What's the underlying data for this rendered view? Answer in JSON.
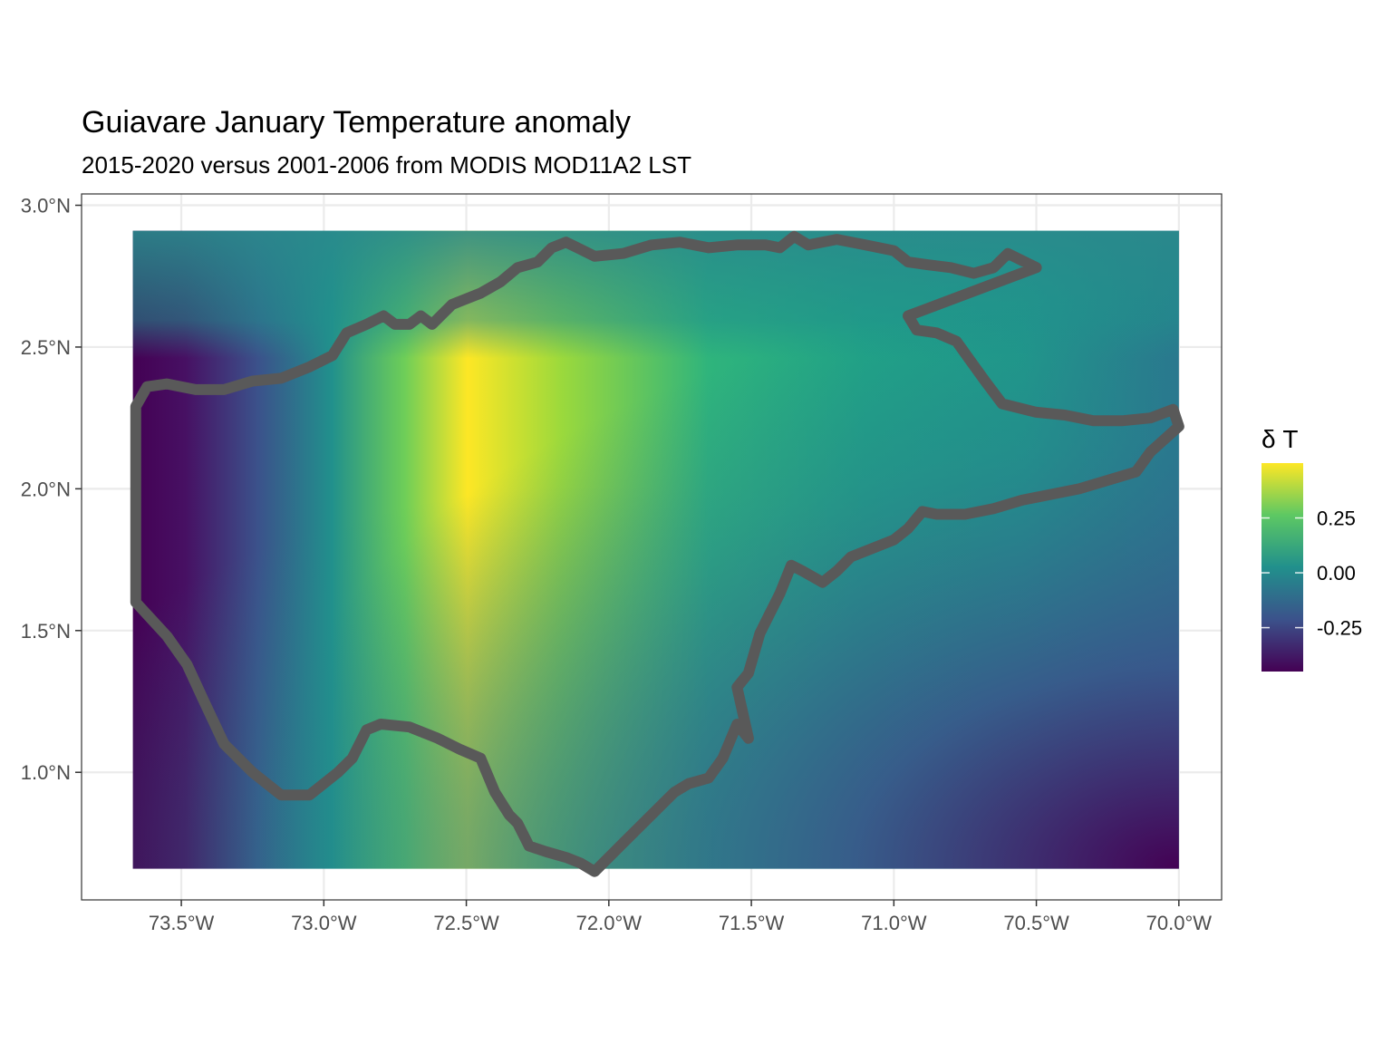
{
  "chart_data": {
    "type": "heatmap",
    "title": "Guiavare January Temperature anomaly",
    "subtitle": "2015-2020 versus 2001-2006 from MODIS MOD11A2 LST",
    "xlabel": "",
    "ylabel": "",
    "xlim": [
      -73.85,
      -69.85
    ],
    "ylim": [
      0.55,
      3.04
    ],
    "raster_extent": {
      "lon": [
        -73.67,
        -70.0
      ],
      "lat": [
        0.66,
        2.91
      ]
    },
    "x_ticks": [
      {
        "value": -73.5,
        "label": "73.5°W"
      },
      {
        "value": -73.0,
        "label": "73.0°W"
      },
      {
        "value": -72.5,
        "label": "72.5°W"
      },
      {
        "value": -72.0,
        "label": "72.0°W"
      },
      {
        "value": -71.5,
        "label": "71.5°W"
      },
      {
        "value": -71.0,
        "label": "71.0°W"
      },
      {
        "value": -70.5,
        "label": "70.5°W"
      },
      {
        "value": -70.0,
        "label": "70.0°W"
      }
    ],
    "y_ticks": [
      {
        "value": 1.0,
        "label": "1.0°N"
      },
      {
        "value": 1.5,
        "label": "1.5°N"
      },
      {
        "value": 2.0,
        "label": "2.0°N"
      },
      {
        "value": 2.5,
        "label": "2.5°N"
      },
      {
        "value": 3.0,
        "label": "3.0°N"
      }
    ],
    "grid": true,
    "legend": {
      "title": "δ T",
      "position": "right",
      "range": [
        -0.45,
        0.5
      ],
      "palette": [
        "#440154",
        "#3b528b",
        "#21908c",
        "#5dc863",
        "#fde725"
      ],
      "ticks": [
        {
          "value": -0.25,
          "label": "-0.25"
        },
        {
          "value": 0.0,
          "label": "0.00"
        },
        {
          "value": 0.25,
          "label": "0.25"
        }
      ]
    },
    "boundary": {
      "color": "#595959",
      "points": [
        [
          -73.66,
          1.6
        ],
        [
          -73.66,
          2.29
        ],
        [
          -73.62,
          2.36
        ],
        [
          -73.55,
          2.37
        ],
        [
          -73.45,
          2.35
        ],
        [
          -73.35,
          2.35
        ],
        [
          -73.25,
          2.38
        ],
        [
          -73.15,
          2.39
        ],
        [
          -73.05,
          2.43
        ],
        [
          -72.97,
          2.47
        ],
        [
          -72.92,
          2.55
        ],
        [
          -72.85,
          2.58
        ],
        [
          -72.79,
          2.61
        ],
        [
          -72.75,
          2.58
        ],
        [
          -72.7,
          2.58
        ],
        [
          -72.66,
          2.61
        ],
        [
          -72.62,
          2.58
        ],
        [
          -72.55,
          2.65
        ],
        [
          -72.45,
          2.69
        ],
        [
          -72.38,
          2.73
        ],
        [
          -72.32,
          2.78
        ],
        [
          -72.25,
          2.8
        ],
        [
          -72.2,
          2.85
        ],
        [
          -72.15,
          2.87
        ],
        [
          -72.05,
          2.82
        ],
        [
          -71.95,
          2.83
        ],
        [
          -71.85,
          2.86
        ],
        [
          -71.75,
          2.87
        ],
        [
          -71.65,
          2.85
        ],
        [
          -71.55,
          2.86
        ],
        [
          -71.45,
          2.86
        ],
        [
          -71.4,
          2.85
        ],
        [
          -71.35,
          2.89
        ],
        [
          -71.3,
          2.86
        ],
        [
          -71.2,
          2.88
        ],
        [
          -71.1,
          2.86
        ],
        [
          -71.0,
          2.84
        ],
        [
          -70.95,
          2.8
        ],
        [
          -70.88,
          2.79
        ],
        [
          -70.8,
          2.78
        ],
        [
          -70.72,
          2.76
        ],
        [
          -70.65,
          2.78
        ],
        [
          -70.6,
          2.83
        ],
        [
          -70.5,
          2.78
        ],
        [
          -70.95,
          2.61
        ],
        [
          -70.92,
          2.56
        ],
        [
          -70.85,
          2.55
        ],
        [
          -70.78,
          2.52
        ],
        [
          -70.73,
          2.45
        ],
        [
          -70.68,
          2.38
        ],
        [
          -70.62,
          2.3
        ],
        [
          -70.5,
          2.27
        ],
        [
          -70.4,
          2.26
        ],
        [
          -70.3,
          2.24
        ],
        [
          -70.2,
          2.24
        ],
        [
          -70.1,
          2.25
        ],
        [
          -70.02,
          2.28
        ],
        [
          -70.0,
          2.22
        ],
        [
          -70.1,
          2.13
        ],
        [
          -70.15,
          2.06
        ],
        [
          -70.25,
          2.03
        ],
        [
          -70.35,
          2.0
        ],
        [
          -70.45,
          1.98
        ],
        [
          -70.55,
          1.96
        ],
        [
          -70.65,
          1.93
        ],
        [
          -70.75,
          1.91
        ],
        [
          -70.85,
          1.91
        ],
        [
          -70.9,
          1.92
        ],
        [
          -70.95,
          1.86
        ],
        [
          -71.0,
          1.82
        ],
        [
          -71.05,
          1.8
        ],
        [
          -71.15,
          1.76
        ],
        [
          -71.2,
          1.71
        ],
        [
          -71.25,
          1.67
        ],
        [
          -71.32,
          1.71
        ],
        [
          -71.36,
          1.73
        ],
        [
          -71.4,
          1.63
        ],
        [
          -71.44,
          1.55
        ],
        [
          -71.47,
          1.49
        ],
        [
          -71.51,
          1.35
        ],
        [
          -71.55,
          1.3
        ],
        [
          -71.51,
          1.12
        ],
        [
          -71.55,
          1.17
        ],
        [
          -71.6,
          1.05
        ],
        [
          -71.65,
          0.98
        ],
        [
          -71.72,
          0.96
        ],
        [
          -71.77,
          0.93
        ],
        [
          -71.8,
          0.9
        ],
        [
          -71.95,
          0.75
        ],
        [
          -72.05,
          0.65
        ],
        [
          -72.1,
          0.68
        ],
        [
          -72.15,
          0.7
        ],
        [
          -72.22,
          0.72
        ],
        [
          -72.28,
          0.74
        ],
        [
          -72.32,
          0.82
        ],
        [
          -72.35,
          0.85
        ],
        [
          -72.4,
          0.93
        ],
        [
          -72.45,
          1.05
        ],
        [
          -72.52,
          1.08
        ],
        [
          -72.6,
          1.12
        ],
        [
          -72.7,
          1.16
        ],
        [
          -72.8,
          1.17
        ],
        [
          -72.85,
          1.15
        ],
        [
          -72.9,
          1.05
        ],
        [
          -72.95,
          1.0
        ],
        [
          -73.05,
          0.92
        ],
        [
          -73.15,
          0.92
        ],
        [
          -73.25,
          1.0
        ],
        [
          -73.35,
          1.1
        ],
        [
          -73.42,
          1.25
        ],
        [
          -73.48,
          1.38
        ],
        [
          -73.55,
          1.48
        ],
        [
          -73.66,
          1.6
        ]
      ]
    }
  }
}
